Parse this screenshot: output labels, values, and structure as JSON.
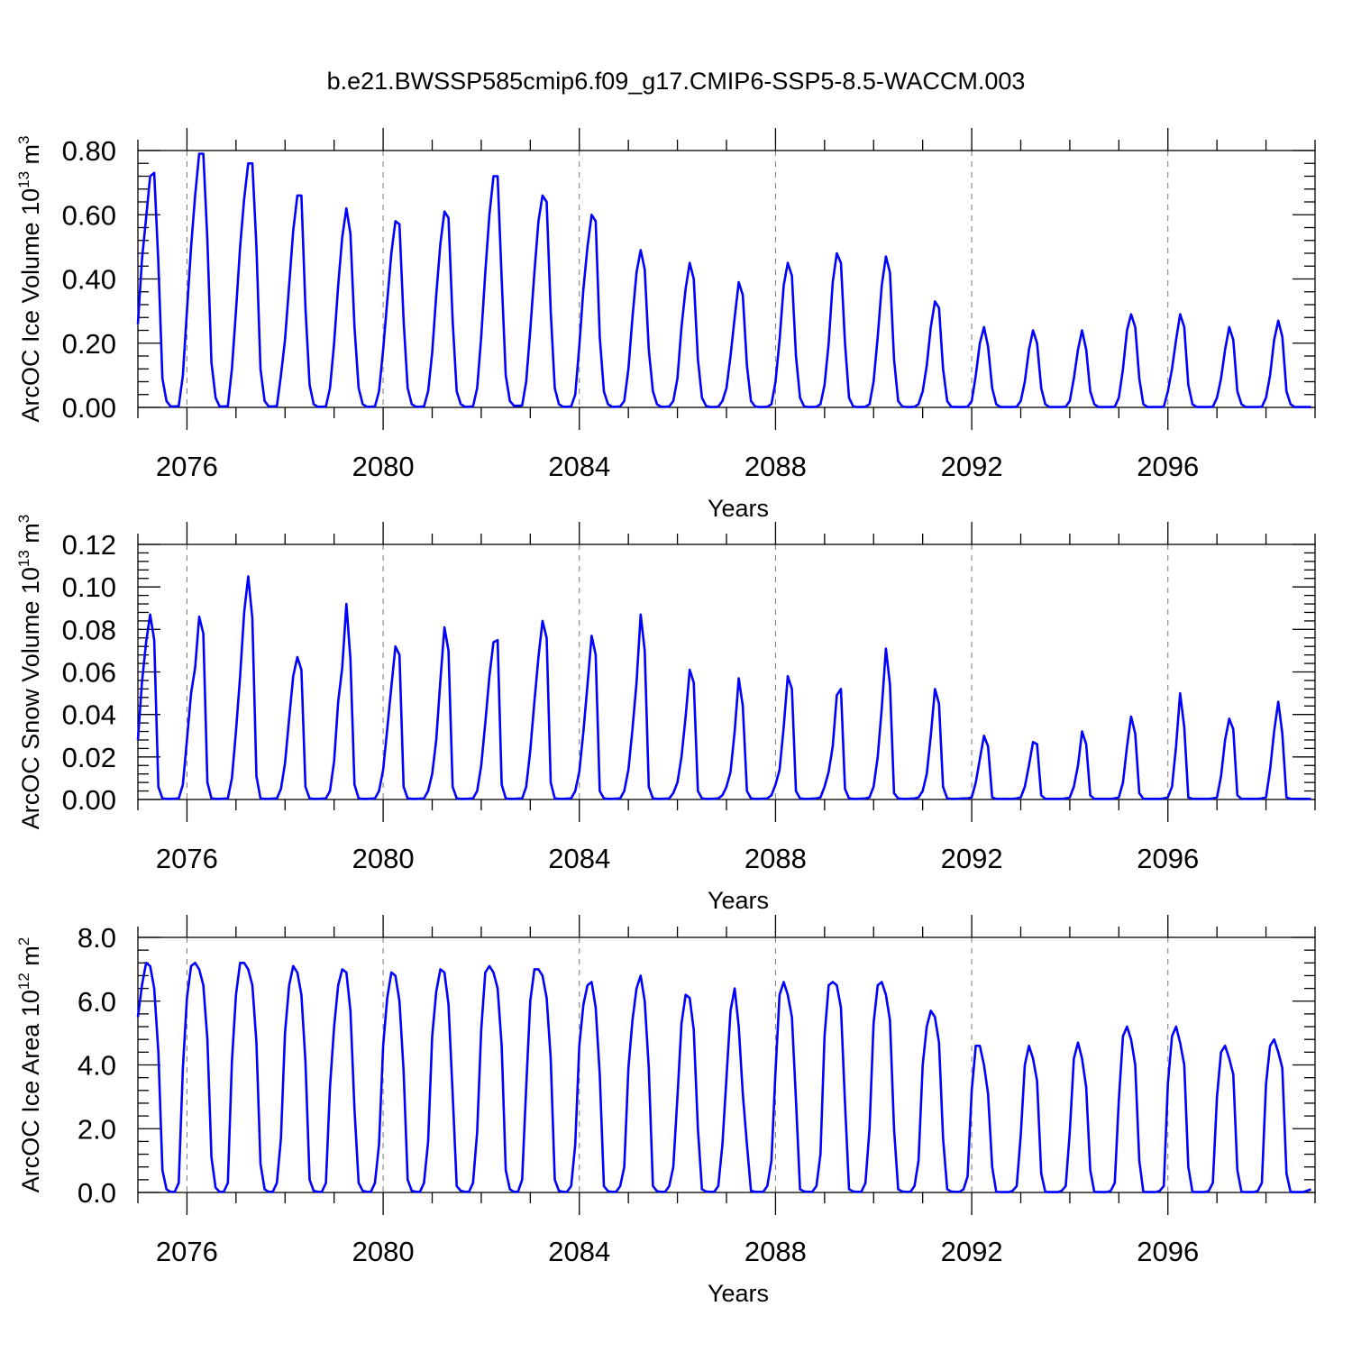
{
  "title": "b.e21.BWSSP585cmip6.f09_g17.CMIP6-SSP5-8.5-WACCM.003",
  "colors": {
    "series": "#0000ff",
    "grid": "#777777"
  },
  "chart_data": [
    {
      "type": "line",
      "ylabel": "ArcOC Ice Volume 10",
      "ylabel_exp": "13",
      "ylabel_unit": " m",
      "ylabel_unit_exp": "3",
      "xlabel": "Years",
      "xlim": [
        2075.0,
        2099.0
      ],
      "ylim": [
        0.0,
        0.8
      ],
      "yticks": [
        "0.00",
        "0.20",
        "0.40",
        "0.60",
        "0.80"
      ],
      "xticks": [
        "2076",
        "2080",
        "2084",
        "2088",
        "2092",
        "2096"
      ],
      "grid": "vertical dashed at major x ticks",
      "series": [
        {
          "x_start": 2075.0,
          "x_step": 0.083333,
          "values": [
            0.26,
            0.46,
            0.59,
            0.72,
            0.73,
            0.45,
            0.09,
            0.02,
            0.003,
            0.003,
            0.004,
            0.1,
            0.3,
            0.5,
            0.66,
            0.79,
            0.79,
            0.52,
            0.14,
            0.03,
            0.003,
            0.003,
            0.004,
            0.12,
            0.3,
            0.5,
            0.65,
            0.76,
            0.76,
            0.5,
            0.12,
            0.02,
            0.003,
            0.003,
            0.004,
            0.1,
            0.21,
            0.38,
            0.55,
            0.66,
            0.66,
            0.31,
            0.07,
            0.01,
            0.002,
            0.002,
            0.003,
            0.06,
            0.2,
            0.38,
            0.53,
            0.62,
            0.54,
            0.25,
            0.06,
            0.01,
            0.002,
            0.002,
            0.003,
            0.05,
            0.18,
            0.33,
            0.48,
            0.58,
            0.57,
            0.27,
            0.06,
            0.01,
            0.002,
            0.002,
            0.003,
            0.05,
            0.17,
            0.35,
            0.51,
            0.61,
            0.59,
            0.27,
            0.05,
            0.01,
            0.002,
            0.002,
            0.003,
            0.06,
            0.22,
            0.42,
            0.6,
            0.72,
            0.72,
            0.4,
            0.1,
            0.02,
            0.005,
            0.005,
            0.006,
            0.08,
            0.24,
            0.42,
            0.58,
            0.66,
            0.64,
            0.3,
            0.06,
            0.01,
            0.002,
            0.002,
            0.003,
            0.04,
            0.19,
            0.37,
            0.5,
            0.6,
            0.58,
            0.22,
            0.05,
            0.01,
            0.002,
            0.002,
            0.003,
            0.02,
            0.12,
            0.28,
            0.42,
            0.49,
            0.43,
            0.18,
            0.05,
            0.01,
            0.002,
            0.002,
            0.003,
            0.02,
            0.09,
            0.25,
            0.37,
            0.45,
            0.4,
            0.15,
            0.03,
            0.005,
            0.001,
            0.001,
            0.002,
            0.02,
            0.06,
            0.16,
            0.28,
            0.39,
            0.35,
            0.13,
            0.02,
            0.003,
            0.001,
            0.001,
            0.002,
            0.01,
            0.08,
            0.21,
            0.38,
            0.45,
            0.41,
            0.16,
            0.03,
            0.003,
            0.001,
            0.001,
            0.002,
            0.01,
            0.07,
            0.2,
            0.39,
            0.48,
            0.45,
            0.2,
            0.03,
            0.003,
            0.001,
            0.001,
            0.002,
            0.01,
            0.08,
            0.22,
            0.38,
            0.47,
            0.42,
            0.15,
            0.02,
            0.003,
            0.001,
            0.001,
            0.002,
            0.01,
            0.05,
            0.13,
            0.25,
            0.33,
            0.31,
            0.12,
            0.02,
            0.002,
            0.001,
            0.001,
            0.001,
            0.002,
            0.02,
            0.1,
            0.2,
            0.25,
            0.19,
            0.06,
            0.01,
            0.001,
            0.001,
            0.001,
            0.001,
            0.002,
            0.02,
            0.08,
            0.18,
            0.24,
            0.2,
            0.06,
            0.01,
            0.001,
            0.001,
            0.001,
            0.001,
            0.002,
            0.02,
            0.09,
            0.18,
            0.24,
            0.18,
            0.05,
            0.01,
            0.001,
            0.001,
            0.001,
            0.001,
            0.002,
            0.03,
            0.12,
            0.24,
            0.29,
            0.25,
            0.09,
            0.01,
            0.001,
            0.001,
            0.001,
            0.001,
            0.002,
            0.05,
            0.12,
            0.21,
            0.29,
            0.25,
            0.07,
            0.01,
            0.001,
            0.001,
            0.001,
            0.001,
            0.002,
            0.03,
            0.09,
            0.18,
            0.25,
            0.21,
            0.05,
            0.01,
            0.001,
            0.001,
            0.001,
            0.001,
            0.002,
            0.03,
            0.1,
            0.21,
            0.27,
            0.22,
            0.05,
            0.01,
            0.001,
            0.001,
            0.001,
            0.001,
            0.001
          ]
        }
      ]
    },
    {
      "type": "line",
      "ylabel": "ArcOC Snow Volume 10",
      "ylabel_exp": "13",
      "ylabel_unit": " m",
      "ylabel_unit_exp": "3",
      "xlabel": "Years",
      "xlim": [
        2075.0,
        2099.0
      ],
      "ylim": [
        0.0,
        0.12
      ],
      "yticks": [
        "0.00",
        "0.02",
        "0.04",
        "0.06",
        "0.08",
        "0.10",
        "0.12"
      ],
      "xticks": [
        "2076",
        "2080",
        "2084",
        "2088",
        "2092",
        "2096"
      ],
      "grid": "vertical dashed at major x ticks",
      "series": [
        {
          "x_start": 2075.0,
          "x_step": 0.083333,
          "values": [
            0.028,
            0.055,
            0.074,
            0.087,
            0.075,
            0.006,
            0.0005,
            0.0003,
            0.0003,
            0.0004,
            0.0005,
            0.007,
            0.028,
            0.05,
            0.062,
            0.086,
            0.078,
            0.008,
            0.0005,
            0.0003,
            0.0003,
            0.0004,
            0.0005,
            0.01,
            0.032,
            0.058,
            0.088,
            0.105,
            0.085,
            0.011,
            0.0005,
            0.0003,
            0.0003,
            0.0004,
            0.0005,
            0.005,
            0.017,
            0.038,
            0.058,
            0.067,
            0.061,
            0.006,
            0.0005,
            0.0003,
            0.0003,
            0.0004,
            0.0005,
            0.004,
            0.018,
            0.046,
            0.062,
            0.092,
            0.066,
            0.007,
            0.0005,
            0.0003,
            0.0003,
            0.0004,
            0.0005,
            0.004,
            0.014,
            0.033,
            0.053,
            0.072,
            0.068,
            0.006,
            0.0005,
            0.0003,
            0.0003,
            0.0004,
            0.0005,
            0.004,
            0.012,
            0.028,
            0.056,
            0.081,
            0.07,
            0.006,
            0.0005,
            0.0003,
            0.0003,
            0.0004,
            0.0005,
            0.004,
            0.016,
            0.036,
            0.058,
            0.074,
            0.075,
            0.007,
            0.0005,
            0.0003,
            0.0003,
            0.0004,
            0.0005,
            0.006,
            0.023,
            0.046,
            0.067,
            0.084,
            0.076,
            0.008,
            0.0005,
            0.0003,
            0.0003,
            0.0004,
            0.0005,
            0.004,
            0.013,
            0.032,
            0.054,
            0.077,
            0.068,
            0.004,
            0.0005,
            0.0003,
            0.0003,
            0.0004,
            0.0005,
            0.004,
            0.014,
            0.033,
            0.055,
            0.087,
            0.07,
            0.006,
            0.0005,
            0.0003,
            0.0003,
            0.0004,
            0.0005,
            0.003,
            0.008,
            0.02,
            0.039,
            0.061,
            0.055,
            0.004,
            0.0005,
            0.0003,
            0.0003,
            0.0004,
            0.0005,
            0.002,
            0.006,
            0.013,
            0.032,
            0.057,
            0.044,
            0.004,
            0.0005,
            0.0003,
            0.0003,
            0.0004,
            0.0005,
            0.002,
            0.007,
            0.014,
            0.034,
            0.058,
            0.052,
            0.004,
            0.0005,
            0.0003,
            0.0003,
            0.0004,
            0.0005,
            0.001,
            0.006,
            0.013,
            0.025,
            0.049,
            0.052,
            0.005,
            0.0005,
            0.0003,
            0.0003,
            0.0004,
            0.0005,
            0.001,
            0.006,
            0.02,
            0.043,
            0.071,
            0.054,
            0.003,
            0.0005,
            0.0003,
            0.0003,
            0.0004,
            0.0005,
            0.001,
            0.004,
            0.012,
            0.03,
            0.052,
            0.045,
            0.006,
            0.0005,
            0.0003,
            0.0003,
            0.0004,
            0.0005,
            0.0005,
            0.001,
            0.008,
            0.019,
            0.03,
            0.025,
            0.001,
            0.0003,
            0.0003,
            0.0003,
            0.0003,
            0.0003,
            0.0005,
            0.001,
            0.006,
            0.016,
            0.027,
            0.026,
            0.002,
            0.0003,
            0.0003,
            0.0003,
            0.0003,
            0.0003,
            0.0005,
            0.001,
            0.006,
            0.016,
            0.032,
            0.026,
            0.002,
            0.0003,
            0.0003,
            0.0003,
            0.0003,
            0.0003,
            0.0005,
            0.001,
            0.008,
            0.025,
            0.039,
            0.031,
            0.003,
            0.0003,
            0.0003,
            0.0003,
            0.0003,
            0.0003,
            0.0005,
            0.001,
            0.006,
            0.025,
            0.05,
            0.034,
            0.001,
            0.0003,
            0.0003,
            0.0003,
            0.0003,
            0.0003,
            0.0005,
            0.001,
            0.011,
            0.028,
            0.038,
            0.033,
            0.002,
            0.0003,
            0.0003,
            0.0003,
            0.0003,
            0.0003,
            0.0005,
            0.001,
            0.014,
            0.032,
            0.046,
            0.031,
            0.001,
            0.0003,
            0.0003,
            0.0003,
            0.0003,
            0.0003,
            0.0003
          ]
        }
      ]
    },
    {
      "type": "line",
      "ylabel": "ArcOC Ice Area 10",
      "ylabel_exp": "12",
      "ylabel_unit": " m",
      "ylabel_unit_exp": "2",
      "xlabel": "Years",
      "xlim": [
        2075.0,
        2099.0
      ],
      "ylim": [
        0.0,
        8.0
      ],
      "yticks": [
        "0.0",
        "2.0",
        "4.0",
        "6.0",
        "8.0"
      ],
      "xticks": [
        "2076",
        "2080",
        "2084",
        "2088",
        "2092",
        "2096"
      ],
      "grid": "vertical dashed at major x ticks",
      "series": [
        {
          "x_start": 2075.0,
          "x_step": 0.083333,
          "values": [
            5.5,
            6.5,
            7.2,
            7.1,
            6.4,
            4.4,
            0.7,
            0.1,
            0.02,
            0.02,
            0.3,
            3.9,
            6.1,
            7.1,
            7.2,
            7.0,
            6.5,
            4.8,
            1.1,
            0.15,
            0.02,
            0.02,
            0.3,
            4.1,
            6.2,
            7.2,
            7.2,
            7.0,
            6.5,
            4.7,
            0.9,
            0.1,
            0.02,
            0.02,
            0.3,
            1.7,
            5.0,
            6.5,
            7.1,
            6.9,
            6.2,
            4.1,
            0.4,
            0.05,
            0.02,
            0.02,
            0.3,
            3.3,
            5.2,
            6.5,
            7.0,
            6.9,
            5.7,
            2.6,
            0.3,
            0.05,
            0.02,
            0.02,
            0.3,
            1.5,
            4.6,
            6.1,
            6.9,
            6.8,
            6.0,
            3.8,
            0.4,
            0.05,
            0.02,
            0.02,
            0.3,
            1.6,
            4.9,
            6.3,
            7.0,
            6.9,
            5.9,
            3.1,
            0.2,
            0.05,
            0.02,
            0.02,
            0.3,
            1.9,
            5.1,
            6.9,
            7.1,
            6.9,
            6.4,
            4.6,
            0.7,
            0.1,
            0.02,
            0.02,
            0.4,
            3.3,
            6.0,
            7.0,
            7.0,
            6.8,
            6.1,
            4.2,
            0.4,
            0.05,
            0.02,
            0.02,
            0.2,
            1.5,
            4.6,
            5.9,
            6.5,
            6.6,
            5.8,
            3.7,
            0.2,
            0.04,
            0.02,
            0.02,
            0.2,
            0.8,
            3.9,
            5.4,
            6.4,
            6.8,
            6.0,
            3.9,
            0.2,
            0.04,
            0.02,
            0.02,
            0.2,
            0.8,
            3.0,
            5.3,
            6.2,
            6.1,
            5.1,
            2.0,
            0.1,
            0.03,
            0.02,
            0.02,
            0.2,
            1.5,
            3.6,
            5.7,
            6.4,
            5.2,
            3.1,
            1.5,
            0.05,
            0.02,
            0.02,
            0.02,
            0.2,
            1.0,
            3.8,
            6.2,
            6.6,
            6.2,
            5.5,
            2.9,
            0.1,
            0.03,
            0.02,
            0.02,
            0.2,
            1.2,
            4.9,
            6.5,
            6.6,
            6.5,
            5.8,
            2.8,
            0.1,
            0.03,
            0.02,
            0.02,
            0.3,
            2.0,
            5.3,
            6.5,
            6.6,
            6.2,
            5.4,
            2.0,
            0.1,
            0.03,
            0.02,
            0.02,
            0.2,
            1.0,
            4.0,
            5.2,
            5.7,
            5.5,
            4.7,
            1.7,
            0.1,
            0.03,
            0.02,
            0.02,
            0.1,
            0.5,
            3.2,
            4.6,
            4.6,
            4.0,
            3.1,
            0.8,
            0.02,
            0.01,
            0.01,
            0.01,
            0.05,
            0.2,
            1.8,
            4.0,
            4.6,
            4.2,
            3.5,
            0.6,
            0.02,
            0.01,
            0.01,
            0.01,
            0.05,
            0.2,
            1.9,
            4.2,
            4.7,
            4.2,
            3.3,
            0.7,
            0.02,
            0.01,
            0.01,
            0.01,
            0.05,
            0.3,
            2.9,
            4.9,
            5.2,
            4.8,
            4.0,
            1.0,
            0.02,
            0.01,
            0.01,
            0.01,
            0.05,
            0.2,
            3.4,
            4.9,
            5.2,
            4.7,
            4.0,
            0.8,
            0.02,
            0.01,
            0.01,
            0.01,
            0.05,
            0.3,
            3.0,
            4.4,
            4.6,
            4.2,
            3.7,
            0.7,
            0.02,
            0.01,
            0.01,
            0.01,
            0.05,
            0.3,
            3.4,
            4.6,
            4.8,
            4.4,
            3.9,
            0.6,
            0.02,
            0.01,
            0.01,
            0.01,
            0.05,
            0.1
          ]
        }
      ]
    }
  ]
}
